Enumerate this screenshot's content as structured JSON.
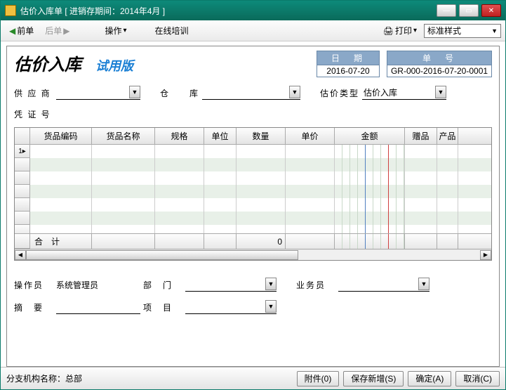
{
  "window": {
    "title": "估价入库单 [ 进销存期间：2014年4月 ]"
  },
  "toolbar": {
    "prev": "前单",
    "next": "后单",
    "operate": "操作",
    "training": "在线培训",
    "print": "打印",
    "style_label": "标准样式"
  },
  "doc": {
    "title": "估价入库",
    "trial": "试用版",
    "date_label": "日　期",
    "date_value": "2016-07-20",
    "no_label": "单　号",
    "no_value": "GR-000-2016-07-20-0001"
  },
  "form": {
    "supplier_label": "供 应 商",
    "warehouse_label": "仓　　库",
    "valtype_label": "估价类型",
    "valtype_value": "估价入库",
    "voucher_label": "凭 证 号",
    "operator_label": "操作员",
    "operator_value": "系统管理员",
    "dept_label": "部　门",
    "sales_label": "业务员",
    "summary_label": "摘　要",
    "project_label": "项　目"
  },
  "grid": {
    "columns": [
      "货品编码",
      "货品名称",
      "规格",
      "单位",
      "数量",
      "单价",
      "金额",
      "赠品",
      "产品"
    ],
    "total_label": "合　计",
    "qty_total": "0",
    "row_count": 7
  },
  "status": {
    "branch_label": "分支机构名称：",
    "branch_value": "总部",
    "attach": "附件(0)",
    "savenew": "保存新增(S)",
    "ok": "确定(A)",
    "cancel": "取消(C)"
  },
  "colors": {
    "title_teal": "#0a7a6a",
    "meta_bg": "#8aa8c8",
    "alt_row": "#e8f0e8"
  }
}
